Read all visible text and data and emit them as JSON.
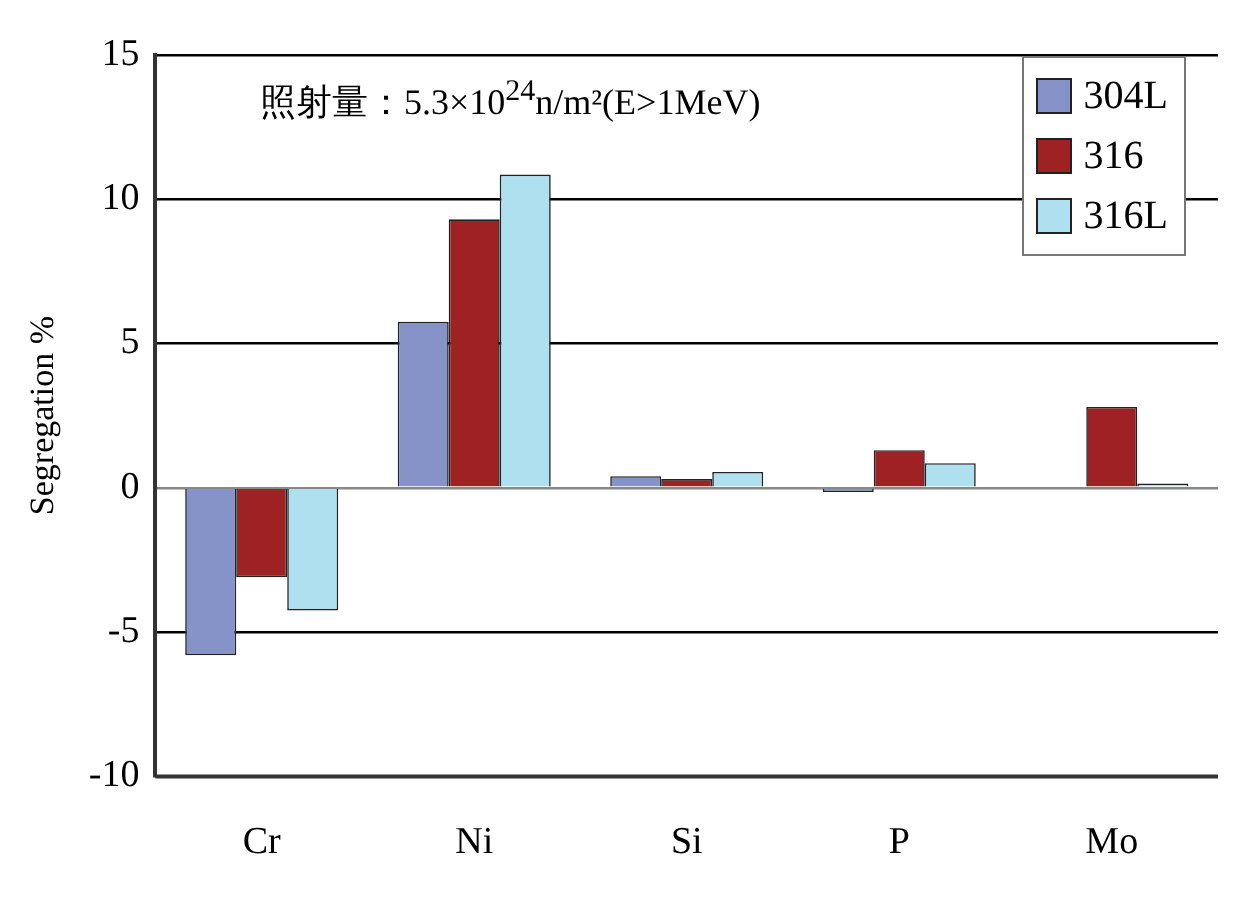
{
  "chart_data": {
    "type": "bar",
    "ylabel": "Segregation %",
    "categories": [
      "Cr",
      "Ni",
      "Si",
      "P",
      "Mo"
    ],
    "series": [
      {
        "name": "304L",
        "color": "#8593c8",
        "values": [
          -5.8,
          5.75,
          0.4,
          -0.15,
          null
        ]
      },
      {
        "name": "316",
        "color": "#9e2224",
        "values": [
          -3.1,
          9.3,
          0.3,
          1.3,
          2.8
        ]
      },
      {
        "name": "316L",
        "color": "#aee0f0",
        "values": [
          -4.25,
          10.85,
          0.55,
          0.85,
          0.15
        ]
      }
    ],
    "ylim": [
      -10,
      15
    ],
    "yticks": [
      -10,
      -5,
      0,
      5,
      10,
      15
    ],
    "grid": "y",
    "legend": "top right",
    "annotations": [
      "照射量：5.3×10$^{24}$n/m²(E>1MeV)"
    ]
  }
}
